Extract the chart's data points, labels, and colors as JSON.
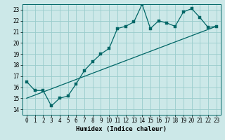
{
  "xlabel": "Humidex (Indice chaleur)",
  "bg_color": "#cce8e8",
  "line_color": "#006666",
  "grid_color": "#99cccc",
  "xlim": [
    -0.5,
    23.5
  ],
  "ylim": [
    13.5,
    23.5
  ],
  "xticks": [
    0,
    1,
    2,
    3,
    4,
    5,
    6,
    7,
    8,
    9,
    10,
    11,
    12,
    13,
    14,
    15,
    16,
    17,
    18,
    19,
    20,
    21,
    22,
    23
  ],
  "yticks": [
    14,
    15,
    16,
    17,
    18,
    19,
    20,
    21,
    22,
    23
  ],
  "data_x": [
    0,
    1,
    2,
    3,
    4,
    5,
    6,
    7,
    8,
    9,
    10,
    11,
    12,
    13,
    14,
    15,
    16,
    17,
    18,
    19,
    20,
    21,
    22,
    23
  ],
  "data_y": [
    16.5,
    15.7,
    15.7,
    14.3,
    15.0,
    15.2,
    16.3,
    17.5,
    18.3,
    19.0,
    19.5,
    21.3,
    21.5,
    21.9,
    23.5,
    21.3,
    22.0,
    21.8,
    21.5,
    22.8,
    23.1,
    22.3,
    21.4,
    21.5
  ],
  "trend_x": [
    0,
    23
  ],
  "trend_y": [
    15.0,
    21.5
  ],
  "marker_size": 2.5,
  "linewidth": 0.9,
  "tick_fontsize": 5.5,
  "xlabel_fontsize": 6.5
}
